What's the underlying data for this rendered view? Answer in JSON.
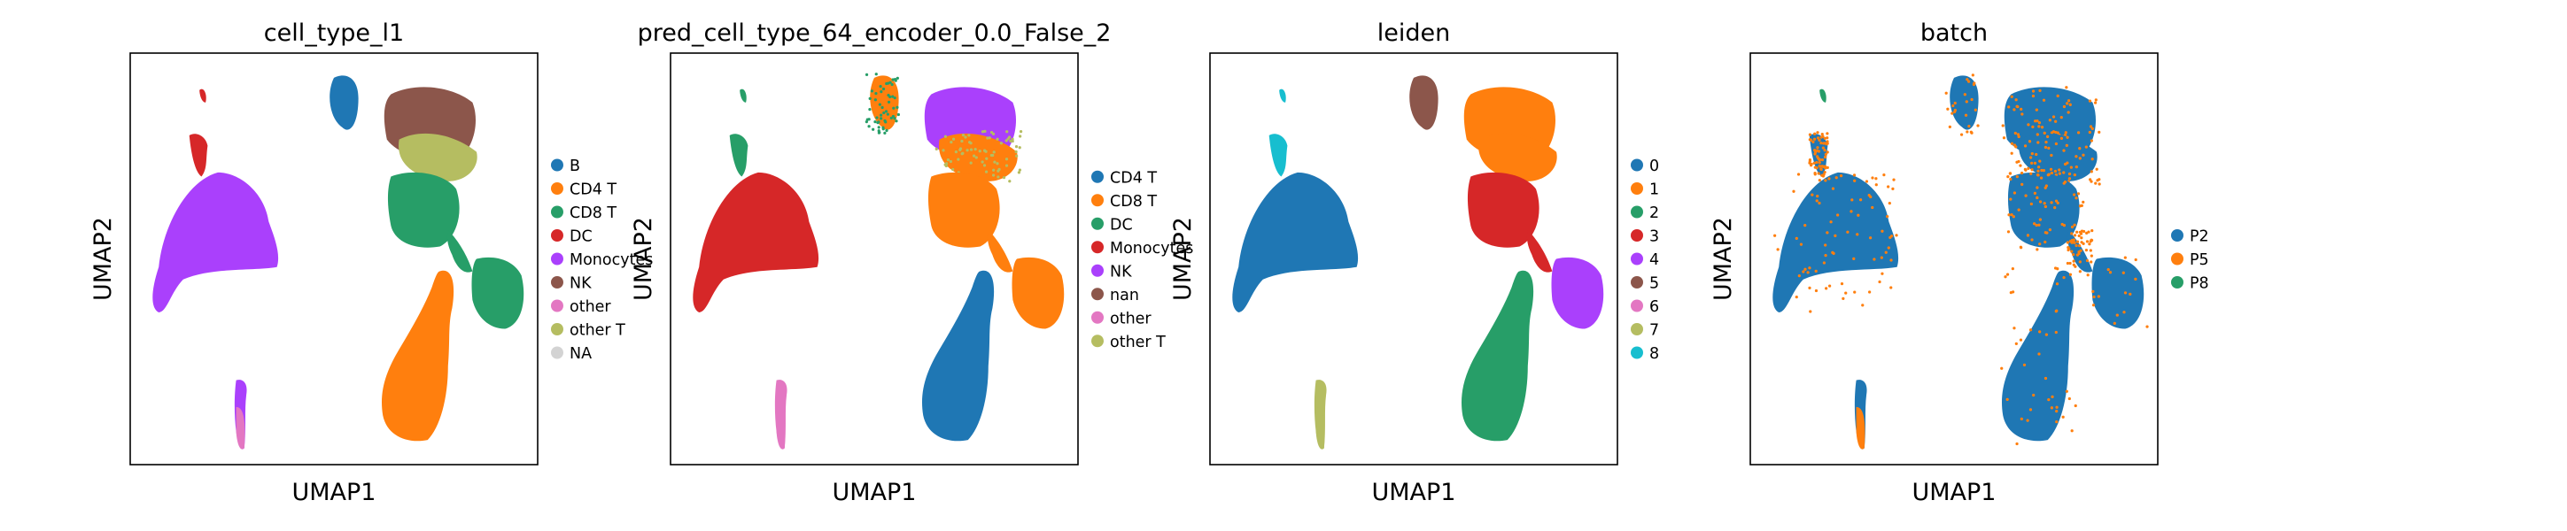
{
  "figure": {
    "palette": {
      "blue": "#1f77b4",
      "orange": "#ff7f0e",
      "green": "#279e68",
      "red": "#d62728",
      "purple": "#aa40fc",
      "brown": "#8c564b",
      "pink": "#e377c2",
      "olive": "#b5bd61",
      "cyan": "#17becf",
      "gray": "#d3d3d3"
    },
    "axis_labels": {
      "x": "UMAP1",
      "y": "UMAP2"
    }
  },
  "chart_data": [
    {
      "type": "scatter",
      "title": "cell_type_l1",
      "xlabel": "UMAP1",
      "ylabel": "UMAP2",
      "ticks": "none",
      "legend_position": "right",
      "categories": [
        {
          "label": "B",
          "color": "#1f77b4"
        },
        {
          "label": "CD4 T",
          "color": "#ff7f0e"
        },
        {
          "label": "CD8 T",
          "color": "#279e68"
        },
        {
          "label": "DC",
          "color": "#d62728"
        },
        {
          "label": "Monocytes",
          "color": "#aa40fc"
        },
        {
          "label": "NK",
          "color": "#8c564b"
        },
        {
          "label": "other",
          "color": "#e377c2"
        },
        {
          "label": "other T",
          "color": "#b5bd61"
        },
        {
          "label": "NA",
          "color": "#d3d3d3"
        }
      ]
    },
    {
      "type": "scatter",
      "title": "pred_cell_type_64_encoder_0.0_False_2",
      "xlabel": "UMAP1",
      "ylabel": "UMAP2",
      "ticks": "none",
      "legend_position": "right",
      "categories": [
        {
          "label": "CD4 T",
          "color": "#1f77b4"
        },
        {
          "label": "CD8 T",
          "color": "#ff7f0e"
        },
        {
          "label": "DC",
          "color": "#279e68"
        },
        {
          "label": "Monocytes",
          "color": "#d62728"
        },
        {
          "label": "NK",
          "color": "#aa40fc"
        },
        {
          "label": "nan",
          "color": "#8c564b"
        },
        {
          "label": "other",
          "color": "#e377c2"
        },
        {
          "label": "other T",
          "color": "#b5bd61"
        }
      ]
    },
    {
      "type": "scatter",
      "title": "leiden",
      "xlabel": "UMAP1",
      "ylabel": "UMAP2",
      "ticks": "none",
      "legend_position": "right",
      "categories": [
        {
          "label": "0",
          "color": "#1f77b4"
        },
        {
          "label": "1",
          "color": "#ff7f0e"
        },
        {
          "label": "2",
          "color": "#279e68"
        },
        {
          "label": "3",
          "color": "#d62728"
        },
        {
          "label": "4",
          "color": "#aa40fc"
        },
        {
          "label": "5",
          "color": "#8c564b"
        },
        {
          "label": "6",
          "color": "#e377c2"
        },
        {
          "label": "7",
          "color": "#b5bd61"
        },
        {
          "label": "8",
          "color": "#17becf"
        }
      ]
    },
    {
      "type": "scatter",
      "title": "batch",
      "xlabel": "UMAP1",
      "ylabel": "UMAP2",
      "ticks": "none",
      "legend_position": "right",
      "categories": [
        {
          "label": "P2",
          "color": "#1f77b4"
        },
        {
          "label": "P5",
          "color": "#ff7f0e"
        },
        {
          "label": "P8",
          "color": "#279e68"
        }
      ]
    }
  ]
}
